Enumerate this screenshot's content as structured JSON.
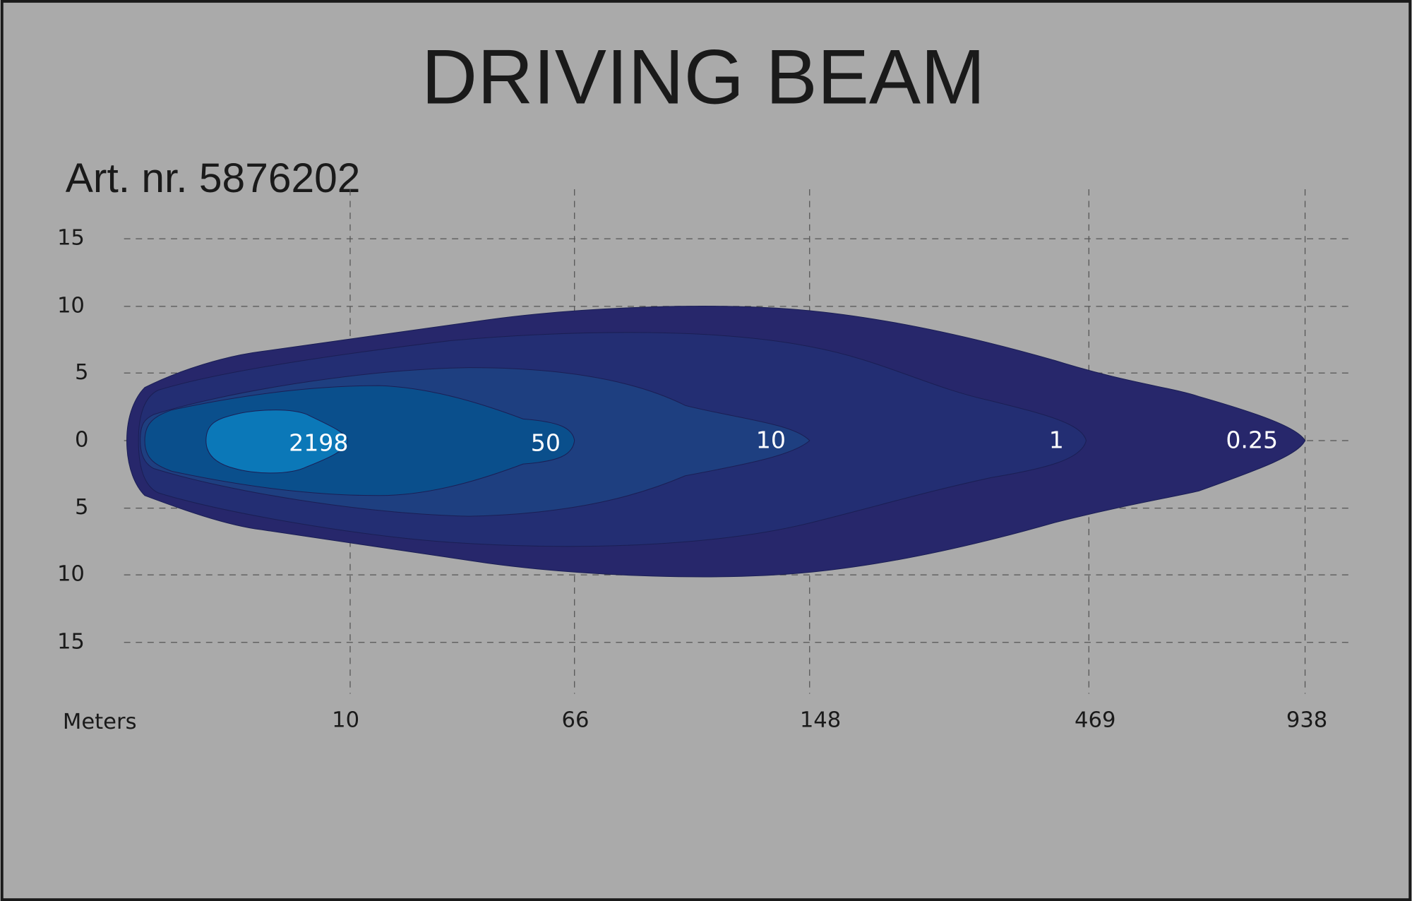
{
  "header": {
    "title": "DRIVING  BEAM",
    "article": "Art. nr. 5876202"
  },
  "y_axis": {
    "labels": [
      "15",
      "10",
      "5",
      "0",
      "5",
      "10",
      "15"
    ]
  },
  "x_axis": {
    "unit": "Meters",
    "labels": [
      "10",
      "66",
      "148",
      "469",
      "938"
    ]
  },
  "zones": {
    "labels": [
      "2198",
      "50",
      "10",
      "1",
      "0.25"
    ]
  }
}
